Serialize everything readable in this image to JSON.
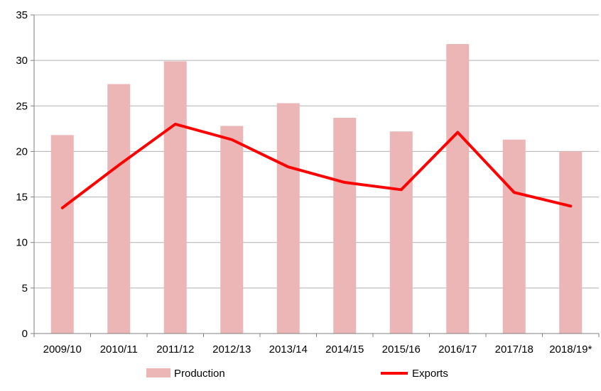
{
  "chart_data": {
    "type": "bar",
    "categories": [
      "2009/10",
      "2010/11",
      "2011/12",
      "2012/13",
      "2013/14",
      "2014/15",
      "2015/16",
      "2016/17",
      "2017/18",
      "2018/19*"
    ],
    "series": [
      {
        "name": "Production",
        "type": "bar",
        "color": "#ecb6b6",
        "values": [
          21.8,
          27.4,
          29.9,
          22.8,
          25.3,
          23.7,
          22.2,
          31.8,
          21.3,
          20.0
        ]
      },
      {
        "name": "Exports",
        "type": "line",
        "color": "#ff0000",
        "values": [
          13.8,
          18.5,
          23.0,
          21.3,
          18.3,
          16.6,
          15.8,
          22.1,
          15.5,
          14.0
        ]
      }
    ],
    "ylim": [
      0,
      35
    ],
    "yticks": [
      0,
      5,
      10,
      15,
      20,
      25,
      30,
      35
    ],
    "grid": "horizontal",
    "legend": "bottom"
  }
}
